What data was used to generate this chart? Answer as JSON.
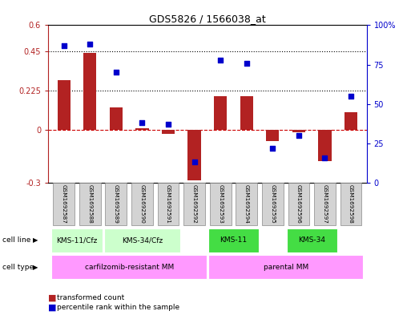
{
  "title": "GDS5826 / 1566038_at",
  "samples": [
    "GSM1692587",
    "GSM1692588",
    "GSM1692589",
    "GSM1692590",
    "GSM1692591",
    "GSM1692592",
    "GSM1692593",
    "GSM1692594",
    "GSM1692595",
    "GSM1692596",
    "GSM1692597",
    "GSM1692598"
  ],
  "transformed_count": [
    0.285,
    0.44,
    0.13,
    0.01,
    -0.02,
    -0.285,
    0.195,
    0.195,
    -0.06,
    -0.01,
    -0.175,
    0.105
  ],
  "percentile_rank": [
    87,
    88,
    70,
    38,
    37,
    13,
    78,
    76,
    22,
    30,
    16,
    55
  ],
  "bar_color": "#B22222",
  "dot_color": "#0000CC",
  "ylim_left": [
    -0.3,
    0.6
  ],
  "ylim_right": [
    0,
    100
  ],
  "yticks_left": [
    -0.3,
    0.0,
    0.225,
    0.45,
    0.6
  ],
  "yticks_left_labels": [
    "-0.3",
    "0",
    "0.225",
    "0.45",
    "0.6"
  ],
  "yticks_right": [
    0,
    25,
    50,
    75,
    100
  ],
  "yticks_right_labels": [
    "0",
    "25",
    "50",
    "75",
    "100%"
  ],
  "hlines": [
    0.45,
    0.225
  ],
  "zero_line_color": "#CC0000",
  "background_color": "#ffffff",
  "cell_line_data": [
    {
      "start": 0,
      "end": 2,
      "label": "KMS-11/Cfz",
      "color": "#ccffcc"
    },
    {
      "start": 2,
      "end": 5,
      "label": "KMS-34/Cfz",
      "color": "#ccffcc"
    },
    {
      "start": 6,
      "end": 8,
      "label": "KMS-11",
      "color": "#44dd44"
    },
    {
      "start": 9,
      "end": 11,
      "label": "KMS-34",
      "color": "#44dd44"
    }
  ],
  "cell_type_data": [
    {
      "start": 0,
      "end": 6,
      "label": "carfilzomib-resistant MM",
      "color": "#ff99ff"
    },
    {
      "start": 6,
      "end": 12,
      "label": "parental MM",
      "color": "#ff99ff"
    }
  ],
  "legend_items": [
    {
      "color": "#B22222",
      "label": "transformed count"
    },
    {
      "color": "#0000CC",
      "label": "percentile rank within the sample"
    }
  ]
}
